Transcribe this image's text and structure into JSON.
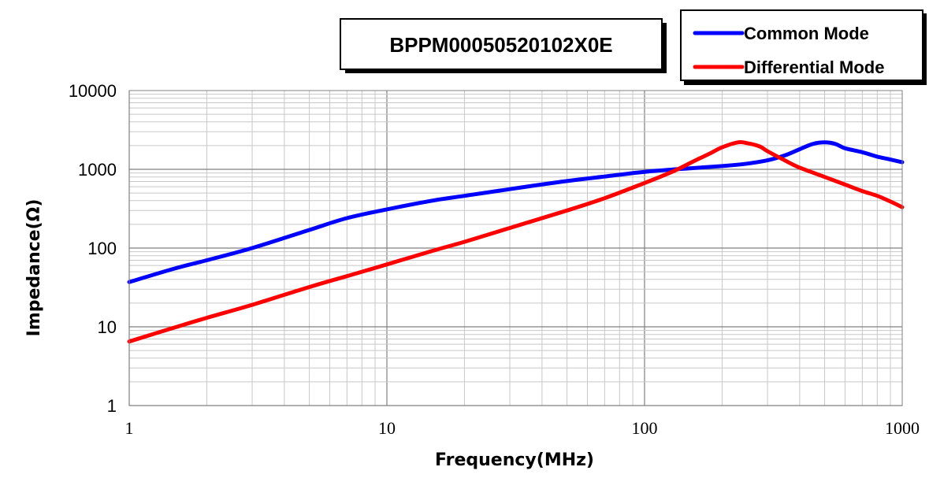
{
  "chart_data": {
    "type": "line",
    "title": "BPPM00050520102X0E",
    "xlabel": "Frequency(MHz)",
    "ylabel": "Impedance(Ω)",
    "xscale": "log",
    "yscale": "log",
    "xlim": [
      1,
      1000
    ],
    "ylim": [
      1,
      10000
    ],
    "xticks": [
      "1",
      "10",
      "100",
      "1000"
    ],
    "yticks": [
      "1",
      "10",
      "100",
      "1000",
      "10000"
    ],
    "grid": true,
    "legend_position": "top-right",
    "series": [
      {
        "name": "Common Mode",
        "color": "#0000ff",
        "x": [
          1,
          1.5,
          2,
          3,
          5,
          7,
          10,
          15,
          20,
          30,
          50,
          70,
          100,
          150,
          200,
          250,
          300,
          350,
          400,
          450,
          500,
          550,
          600,
          700,
          800,
          900,
          1000
        ],
        "y": [
          37,
          55,
          70,
          100,
          170,
          240,
          310,
          400,
          460,
          560,
          710,
          810,
          930,
          1030,
          1100,
          1180,
          1300,
          1500,
          1800,
          2100,
          2200,
          2100,
          1850,
          1650,
          1450,
          1330,
          1230
        ]
      },
      {
        "name": "Differential Mode",
        "color": "#ff0000",
        "x": [
          1,
          1.5,
          2,
          3,
          5,
          7,
          10,
          15,
          20,
          30,
          50,
          70,
          100,
          130,
          150,
          180,
          200,
          230,
          250,
          280,
          300,
          350,
          400,
          500,
          600,
          700,
          800,
          900,
          1000
        ],
        "y": [
          6.5,
          9.8,
          13,
          19,
          32,
          44,
          62,
          92,
          120,
          180,
          300,
          430,
          670,
          950,
          1200,
          1600,
          1900,
          2200,
          2150,
          1950,
          1700,
          1300,
          1050,
          800,
          640,
          530,
          460,
          390,
          330
        ]
      }
    ]
  }
}
